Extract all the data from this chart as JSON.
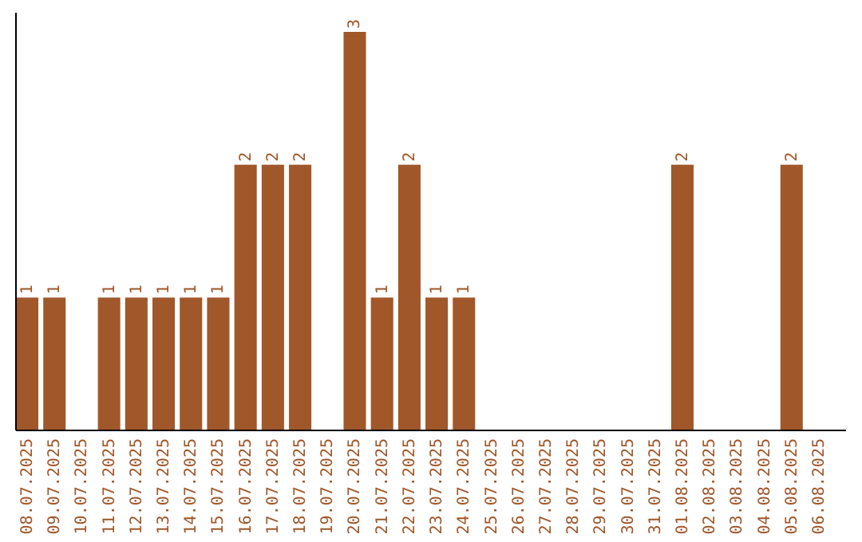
{
  "chart_data": {
    "type": "bar",
    "categories": [
      "08.07.2025",
      "09.07.2025",
      "10.07.2025",
      "11.07.2025",
      "12.07.2025",
      "13.07.2025",
      "14.07.2025",
      "15.07.2025",
      "16.07.2025",
      "17.07.2025",
      "18.07.2025",
      "19.07.2025",
      "20.07.2025",
      "21.07.2025",
      "22.07.2025",
      "23.07.2025",
      "24.07.2025",
      "25.07.2025",
      "26.07.2025",
      "27.07.2025",
      "28.07.2025",
      "29.07.2025",
      "30.07.2025",
      "31.07.2025",
      "01.08.2025",
      "02.08.2025",
      "03.08.2025",
      "04.08.2025",
      "05.08.2025",
      "06.08.2025"
    ],
    "values": [
      1,
      1,
      0,
      1,
      1,
      1,
      1,
      1,
      2,
      2,
      2,
      0,
      3,
      1,
      2,
      1,
      1,
      0,
      0,
      0,
      0,
      0,
      0,
      0,
      2,
      0,
      0,
      0,
      2,
      0
    ],
    "value_labels": [
      "1",
      "1",
      null,
      "1",
      "1",
      "1",
      "1",
      "1",
      "2",
      "2",
      "2",
      null,
      "3",
      "1",
      "2",
      "1",
      "1",
      null,
      null,
      null,
      null,
      null,
      null,
      null,
      "2",
      null,
      null,
      null,
      "2",
      null
    ],
    "color": "#a0572a",
    "ylim": [
      0,
      3
    ]
  }
}
